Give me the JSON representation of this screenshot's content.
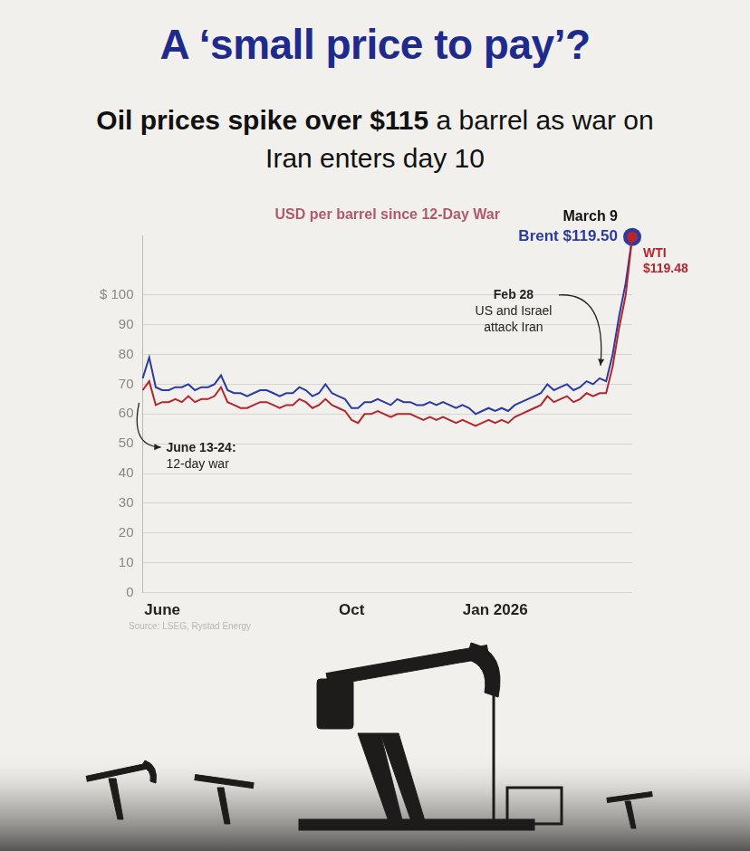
{
  "chart_data": {
    "type": "line",
    "title": "A ‘small price to pay’?",
    "subtitle": [
      "Oil prices spike over $115",
      "a barrel as war on Iran enters day 10"
    ],
    "y_label": "USD per barrel since 12-Day War",
    "source": "Source: LSEG, Rystad Energy",
    "categories": [
      null,
      null,
      null,
      "June",
      null,
      null,
      null,
      null,
      null,
      null,
      null,
      null,
      null,
      null,
      null,
      null,
      null,
      null,
      null,
      null,
      null,
      null,
      null,
      null,
      null,
      null,
      null,
      null,
      null,
      null,
      null,
      null,
      "Oct",
      null,
      null,
      null,
      null,
      null,
      null,
      null,
      null,
      null,
      null,
      null,
      null,
      null,
      null,
      null,
      null,
      null,
      null,
      null,
      null,
      null,
      "Jan 2026",
      null,
      null,
      null,
      null,
      null,
      null,
      null,
      null,
      null,
      null,
      null,
      null,
      null,
      null,
      null,
      null,
      null,
      null,
      null,
      null,
      null
    ],
    "series": [
      {
        "name": "Brent",
        "color": "#2b3a9e",
        "values": [
          72,
          79,
          69,
          68,
          68,
          69,
          69,
          70,
          68,
          69,
          69,
          70,
          73,
          68,
          67,
          67,
          66,
          67,
          68,
          68,
          67,
          66,
          67,
          67,
          69,
          68,
          66,
          67,
          70,
          67,
          66,
          65,
          62,
          62,
          64,
          64,
          65,
          64,
          63,
          65,
          64,
          64,
          63,
          63,
          64,
          63,
          64,
          63,
          62,
          63,
          62,
          60,
          61,
          62,
          61,
          62,
          61,
          63,
          64,
          65,
          66,
          67,
          70,
          68,
          69,
          70,
          68,
          69,
          71,
          70,
          72,
          71,
          80,
          93,
          104,
          119.5
        ],
        "value_labels": [
          null,
          null,
          null,
          null,
          null,
          null,
          null,
          null,
          null,
          null,
          null,
          null,
          null,
          null,
          null,
          null,
          null,
          null,
          null,
          null,
          null,
          null,
          null,
          null,
          null,
          null,
          null,
          null,
          null,
          null,
          null,
          null,
          null,
          null,
          null,
          null,
          null,
          null,
          null,
          null,
          null,
          null,
          null,
          null,
          null,
          null,
          null,
          null,
          null,
          null,
          null,
          null,
          null,
          null,
          null,
          null,
          null,
          null,
          null,
          null,
          null,
          null,
          null,
          null,
          null,
          null,
          null,
          null,
          null,
          null,
          null,
          null,
          null,
          null,
          null,
          "$119.50"
        ]
      },
      {
        "name": "WTI",
        "color": "#b3262e",
        "values": [
          68,
          71,
          63,
          64,
          64,
          65,
          64,
          66,
          64,
          65,
          65,
          66,
          69,
          64,
          63,
          62,
          62,
          63,
          64,
          64,
          63,
          62,
          63,
          63,
          65,
          64,
          62,
          63,
          65,
          63,
          62,
          61,
          58,
          57,
          60,
          60,
          61,
          60,
          59,
          60,
          60,
          60,
          59,
          58,
          59,
          58,
          59,
          58,
          57,
          58,
          57,
          56,
          57,
          58,
          57,
          58,
          57,
          59,
          60,
          61,
          62,
          63,
          66,
          64,
          65,
          66,
          64,
          65,
          67,
          66,
          67,
          67,
          76,
          89,
          100,
          119.48
        ],
        "value_labels": [
          null,
          null,
          null,
          null,
          null,
          null,
          null,
          null,
          null,
          null,
          null,
          null,
          null,
          null,
          null,
          null,
          null,
          null,
          null,
          null,
          null,
          null,
          null,
          null,
          null,
          null,
          null,
          null,
          null,
          null,
          null,
          null,
          null,
          null,
          null,
          null,
          null,
          null,
          null,
          null,
          null,
          null,
          null,
          null,
          null,
          null,
          null,
          null,
          null,
          null,
          null,
          null,
          null,
          null,
          null,
          null,
          null,
          null,
          null,
          null,
          null,
          null,
          null,
          null,
          null,
          null,
          null,
          null,
          null,
          null,
          null,
          null,
          null,
          null,
          null,
          "$119.48"
        ]
      }
    ],
    "annotations": [
      {
        "label": "June 13-24:",
        "text": [
          "12-day war"
        ]
      },
      {
        "label": "Feb 28",
        "text": [
          "US and Israel",
          "attack Iran"
        ]
      },
      {
        "label": "March 9"
      }
    ],
    "ylim": [
      0,
      120
    ],
    "yticks": [
      0,
      10,
      20,
      30,
      40,
      50,
      60,
      70,
      80,
      90,
      {
        "value": 100,
        "label": "$ 100"
      }
    ],
    "grid": true
  }
}
